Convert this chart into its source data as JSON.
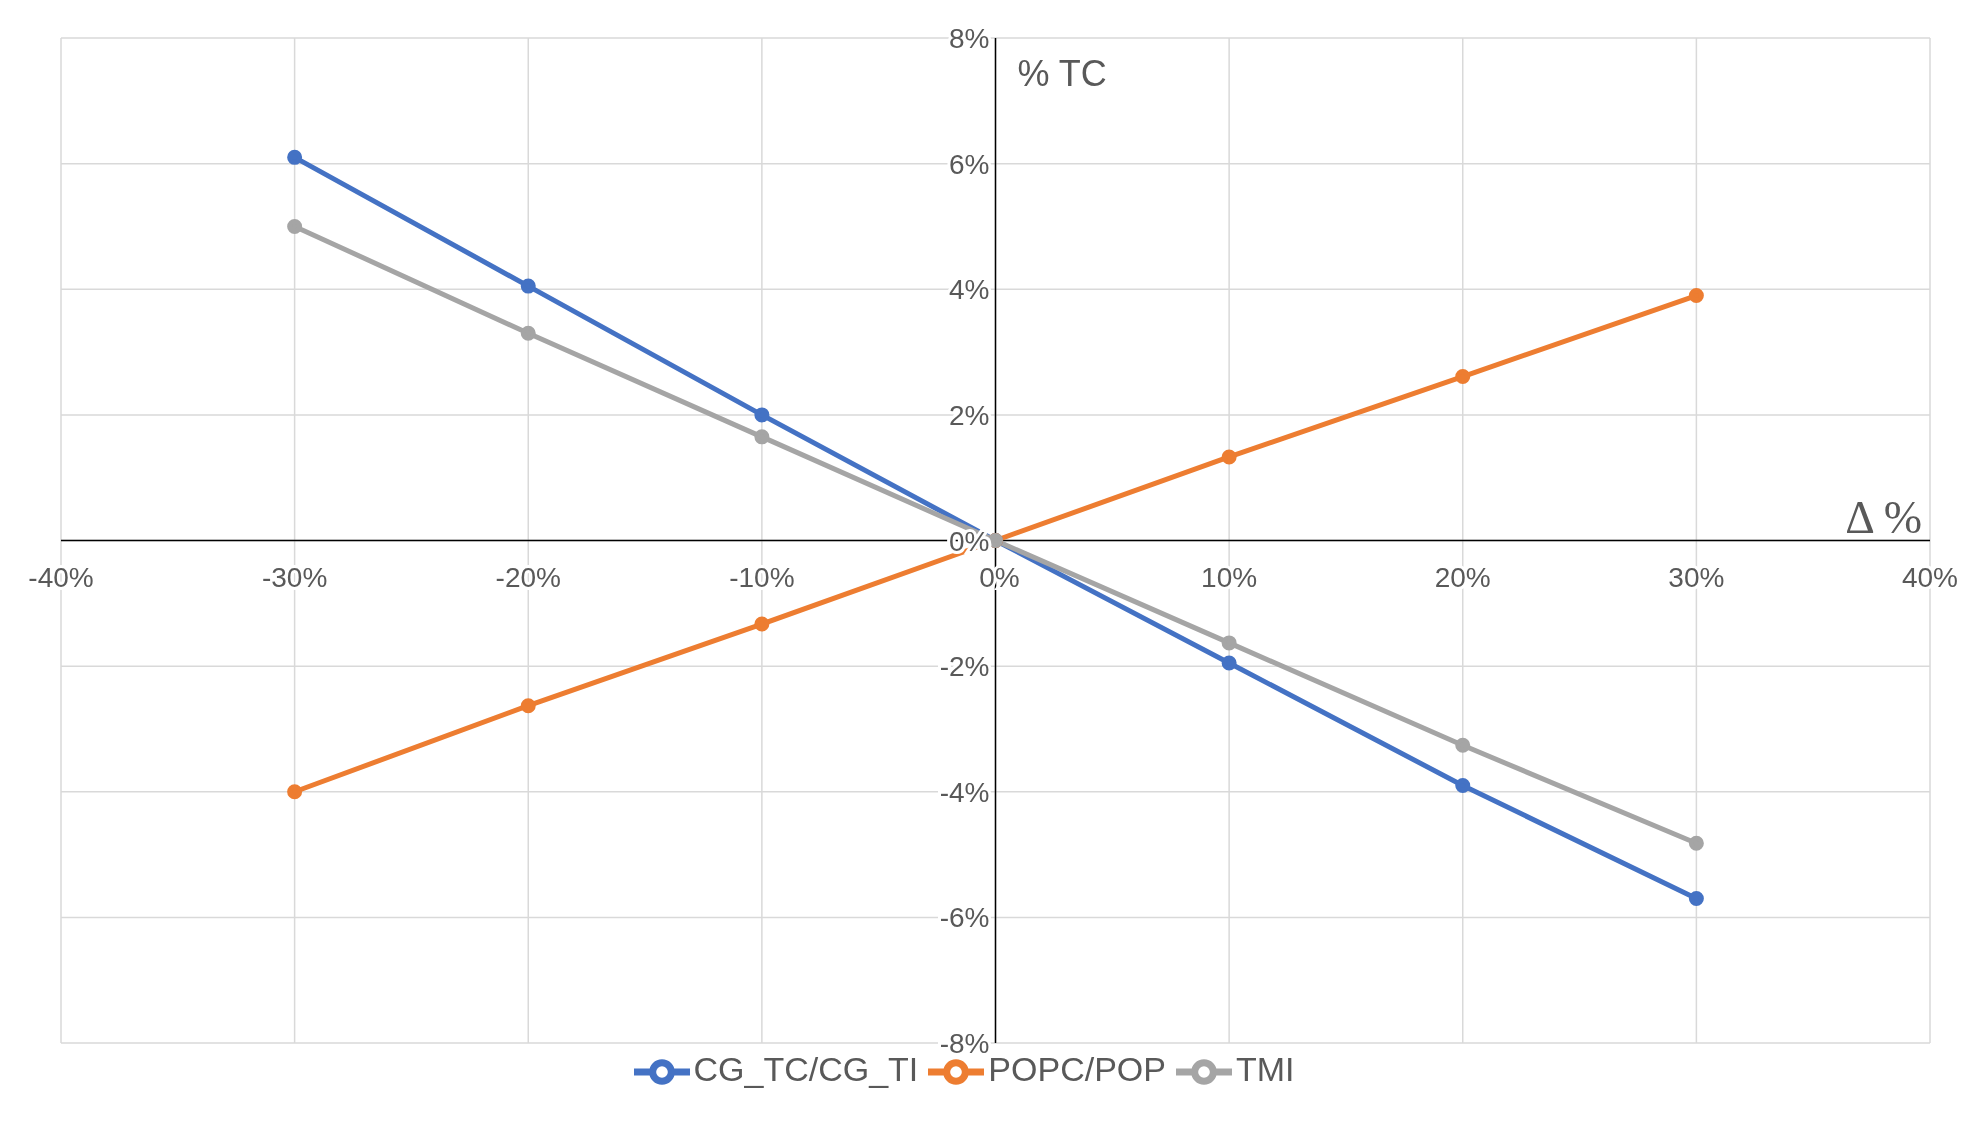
{
  "chart_data": {
    "type": "line",
    "xlabel": "Δ %",
    "ylabel": "% TC",
    "x": [
      -30,
      -20,
      -10,
      0,
      10,
      20,
      30
    ],
    "series": [
      {
        "name": "CG_TC/CG_TI",
        "color": "#4472c4",
        "values": [
          6.1,
          4.05,
          2.0,
          0,
          -1.95,
          -3.9,
          -5.7
        ]
      },
      {
        "name": "POPC/POP",
        "color": "#ed7d31",
        "values": [
          -4.0,
          -2.63,
          -1.33,
          0,
          1.33,
          2.61,
          3.9
        ]
      },
      {
        "name": "TMI",
        "color": "#a5a5a5",
        "values": [
          5.0,
          3.3,
          1.65,
          0,
          -1.63,
          -3.26,
          -4.82
        ]
      }
    ],
    "xlim": [
      -40,
      40
    ],
    "xticks": [
      {
        "value": -40,
        "label": "-40%"
      },
      {
        "value": -30,
        "label": "-30%"
      },
      {
        "value": -20,
        "label": "-20%"
      },
      {
        "value": -10,
        "label": "-10%"
      },
      {
        "value": 0,
        "label": "0%"
      },
      {
        "value": 10,
        "label": "10%"
      },
      {
        "value": 20,
        "label": "20%"
      },
      {
        "value": 30,
        "label": "30%"
      },
      {
        "value": 40,
        "label": "40%"
      }
    ],
    "ylim": [
      -8,
      8
    ],
    "yticks": [
      {
        "value": -8,
        "label": "-8%"
      },
      {
        "value": -6,
        "label": "-6%"
      },
      {
        "value": -4,
        "label": "-4%"
      },
      {
        "value": -2,
        "label": "-2%"
      },
      {
        "value": 0,
        "label": "0%"
      },
      {
        "value": 2,
        "label": "2%"
      },
      {
        "value": 4,
        "label": "4%"
      },
      {
        "value": 6,
        "label": "6%"
      },
      {
        "value": 8,
        "label": "8%"
      }
    ],
    "grid": true,
    "legend": "bottom",
    "marker": "circle",
    "line_style": "solid"
  }
}
